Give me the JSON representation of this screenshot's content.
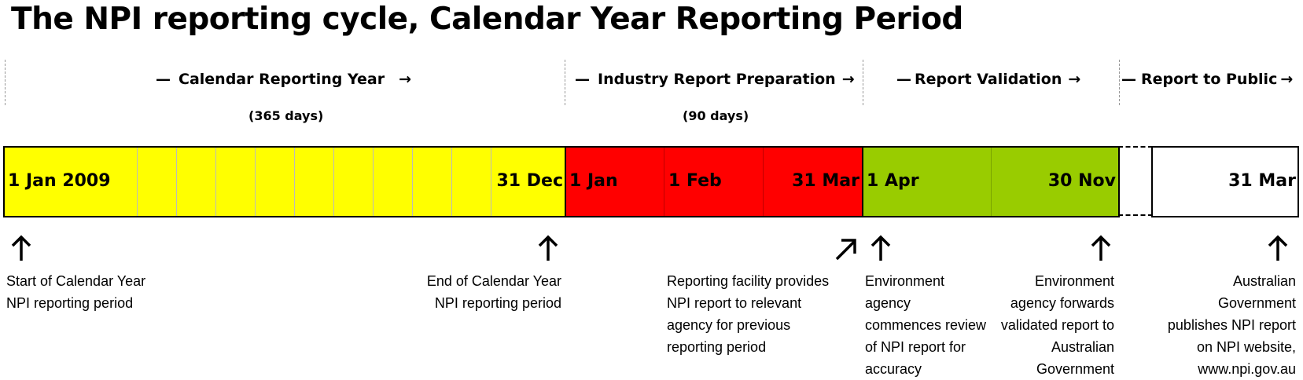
{
  "title": "The NPI reporting cycle, Calendar Year Reporting Period",
  "phases": [
    {
      "label": "Calendar Reporting Year",
      "duration": "(365 days)"
    },
    {
      "label": "Industry Report Preparation",
      "duration": "(90 days)"
    },
    {
      "label": "Report Validation",
      "duration": ""
    },
    {
      "label": "Report to Public",
      "duration": ""
    }
  ],
  "phase_dash": "—",
  "phase_arrow": "→",
  "timeline_colors": {
    "calendar_year": "#ffff00",
    "preparation": "#ff0000",
    "validation": "#99cc00",
    "public": "#ffffff"
  },
  "dates": {
    "start": "1 Jan 2009",
    "end_year": "31 Dec",
    "prep_start": "1 Jan",
    "prep_feb": "1 Feb",
    "prep_end": "31 Mar",
    "valid_start": "1 Apr",
    "valid_end": "30 Nov",
    "public": "31 Mar"
  },
  "notes": {
    "start": "Start of Calendar Year\nNPI reporting period",
    "end": "End of Calendar Year\nNPI reporting period",
    "facility": "Reporting facility provides\nNPI report to relevant\nagency for previous\nreporting period",
    "agency_review": "Environment\nagency\ncommences review\nof NPI report for\naccuracy",
    "agency_forward": "Environment\nagency forwards\nvalidated report to\nAustralian\nGovernment",
    "publish": "Australian\nGovernment\npublishes NPI report\non NPI website,\nwww.npi.gov.au"
  },
  "icons": [
    "arrow-up-icon",
    "arrow-up-right-icon"
  ]
}
